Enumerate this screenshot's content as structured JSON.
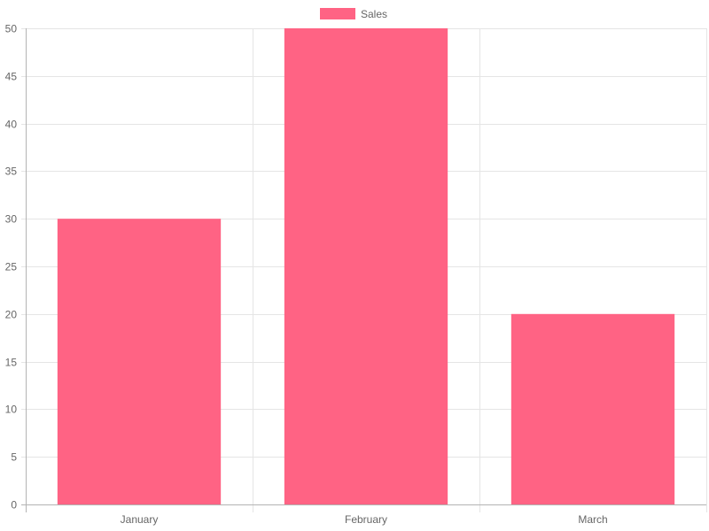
{
  "chart_data": {
    "type": "bar",
    "categories": [
      "January",
      "February",
      "March"
    ],
    "series": [
      {
        "name": "Sales",
        "values": [
          30,
          50,
          20
        ],
        "color": "#ff6384"
      }
    ],
    "ylim": [
      0,
      50
    ],
    "y_ticks": [
      0,
      5,
      10,
      15,
      20,
      25,
      30,
      35,
      40,
      45,
      50
    ],
    "grid": true,
    "legend_position": "top-center"
  },
  "colors": {
    "bar": "#ff6384",
    "grid": "#e5e5e5",
    "axis": "#b3b3b3",
    "text": "#666666"
  }
}
